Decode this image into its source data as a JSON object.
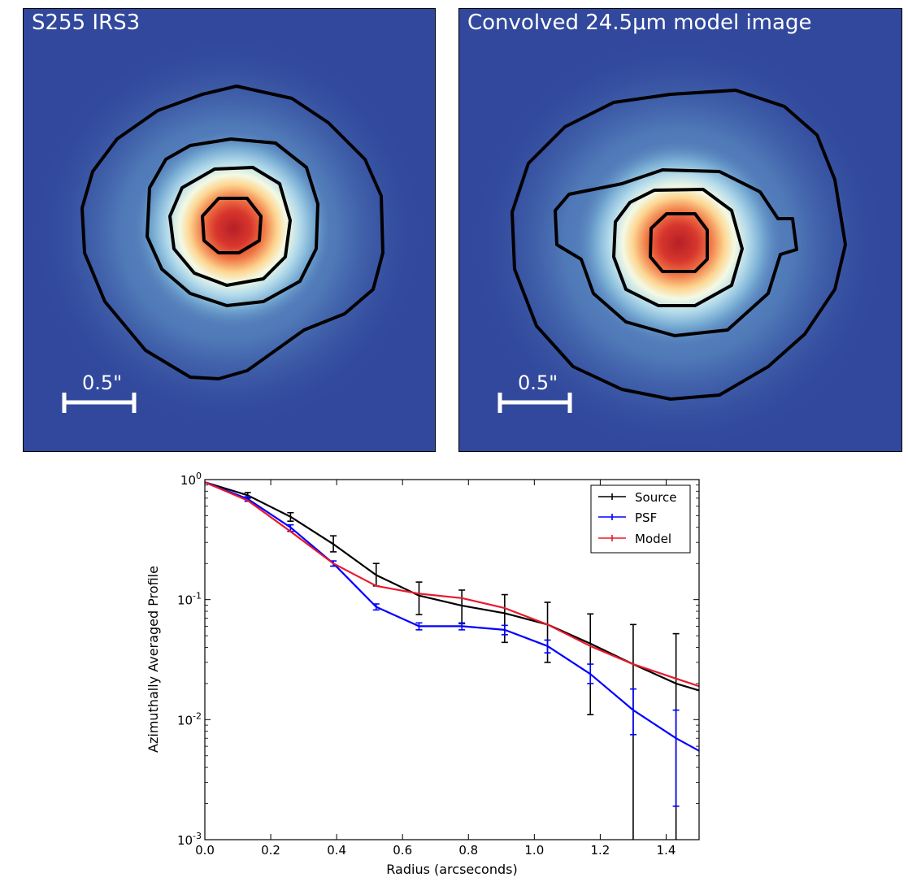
{
  "images": [
    {
      "title": "S255 IRS3",
      "scale_bar_label": "0.5\""
    },
    {
      "title": "Convolved 24.5μm model image",
      "scale_bar_label": "0.5\""
    }
  ],
  "colors": {
    "background_blue": "#31489c",
    "contour": "#000000",
    "core_red": "#b51f26"
  },
  "chart_data": {
    "type": "line",
    "xlabel": "Radius (arcseconds)",
    "ylabel": "Azimuthally Averaged Profile",
    "xlim": [
      0.0,
      1.5
    ],
    "ylim": [
      0.001,
      1.0
    ],
    "yscale": "log",
    "x_ticks": [
      "0.0",
      "0.2",
      "0.4",
      "0.6",
      "0.8",
      "1.0",
      "1.2",
      "1.4"
    ],
    "y_ticks": [
      {
        "base": "10",
        "exp": "0"
      },
      {
        "base": "10",
        "exp": "-1"
      },
      {
        "base": "10",
        "exp": "-2"
      },
      {
        "base": "10",
        "exp": "-3"
      }
    ],
    "legend_position": "top-right",
    "series": [
      {
        "name": "Source",
        "color": "#000000",
        "x": [
          0.0,
          0.13,
          0.26,
          0.39,
          0.52,
          0.65,
          0.78,
          0.91,
          1.04,
          1.17,
          1.3,
          1.43,
          1.5
        ],
        "y": [
          0.95,
          0.74,
          0.49,
          0.29,
          0.16,
          0.108,
          0.089,
          0.077,
          0.062,
          0.043,
          0.029,
          0.02,
          0.0175
        ],
        "err_low": [
          null,
          0.7,
          0.45,
          0.25,
          0.13,
          0.075,
          0.063,
          0.044,
          0.03,
          0.011,
          0.0009,
          0.0009,
          null
        ],
        "err_high": [
          null,
          0.78,
          0.53,
          0.34,
          0.2,
          0.14,
          0.12,
          0.11,
          0.095,
          0.076,
          0.062,
          0.052,
          null
        ]
      },
      {
        "name": "PSF",
        "color": "#0000ff",
        "x": [
          0.0,
          0.13,
          0.26,
          0.39,
          0.52,
          0.65,
          0.78,
          0.91,
          1.04,
          1.17,
          1.3,
          1.43,
          1.5
        ],
        "y": [
          0.95,
          0.69,
          0.4,
          0.2,
          0.087,
          0.06,
          0.06,
          0.056,
          0.041,
          0.024,
          0.012,
          0.007,
          0.0055
        ],
        "err_low": [
          null,
          0.66,
          0.37,
          0.19,
          0.082,
          0.056,
          0.056,
          0.051,
          0.036,
          0.02,
          0.0075,
          0.0019,
          null
        ],
        "err_high": [
          null,
          0.72,
          0.42,
          0.21,
          0.092,
          0.064,
          0.064,
          0.061,
          0.046,
          0.029,
          0.018,
          0.012,
          null
        ]
      },
      {
        "name": "Model",
        "color": "#e8192c",
        "x": [
          0.0,
          0.13,
          0.26,
          0.39,
          0.52,
          0.65,
          0.78,
          0.91,
          1.04,
          1.17,
          1.3,
          1.43,
          1.5
        ],
        "y": [
          0.95,
          0.67,
          0.37,
          0.2,
          0.13,
          0.112,
          0.103,
          0.085,
          0.062,
          0.041,
          0.029,
          0.022,
          0.019
        ],
        "err_low": [
          null,
          null,
          null,
          null,
          null,
          null,
          null,
          null,
          null,
          null,
          null,
          null,
          null
        ],
        "err_high": [
          null,
          null,
          null,
          null,
          null,
          null,
          null,
          null,
          null,
          null,
          null,
          null,
          null
        ]
      }
    ]
  }
}
